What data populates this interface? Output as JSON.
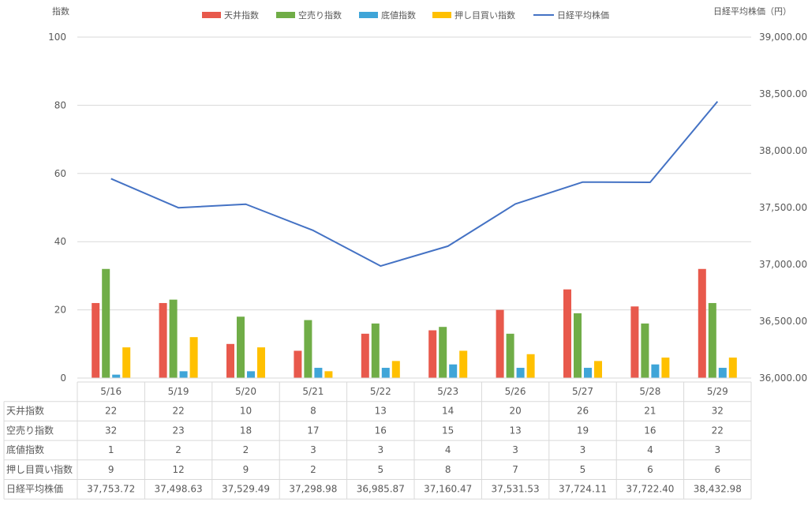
{
  "chart_data": {
    "type": "bar",
    "categories": [
      "5/16",
      "5/19",
      "5/20",
      "5/21",
      "5/22",
      "5/23",
      "5/26",
      "5/27",
      "5/28",
      "5/29"
    ],
    "series": [
      {
        "name": "天井指数",
        "kind": "bar",
        "color": "#E8594C",
        "values": [
          22,
          22,
          10,
          8,
          13,
          14,
          20,
          26,
          21,
          32
        ]
      },
      {
        "name": "空売り指数",
        "kind": "bar",
        "color": "#70AD47",
        "values": [
          32,
          23,
          18,
          17,
          16,
          15,
          13,
          19,
          16,
          22
        ]
      },
      {
        "name": "底値指数",
        "kind": "bar",
        "color": "#3FA5D8",
        "values": [
          1,
          2,
          2,
          3,
          3,
          4,
          3,
          3,
          4,
          3
        ]
      },
      {
        "name": "押し目買い指数",
        "kind": "bar",
        "color": "#FFC000",
        "values": [
          9,
          12,
          9,
          2,
          5,
          8,
          7,
          5,
          6,
          6
        ]
      },
      {
        "name": "日経平均株価",
        "kind": "line",
        "axis": "right",
        "color": "#4472C4",
        "values": [
          37753.72,
          37498.63,
          37529.49,
          37298.98,
          36985.87,
          37160.47,
          37531.53,
          37724.11,
          37722.4,
          38432.98
        ]
      }
    ],
    "ylabel": "指数",
    "ylabel_right": "日経平均株価（円）",
    "ylim": [
      0,
      100
    ],
    "yticks": [
      "0",
      "20",
      "40",
      "60",
      "80",
      "100"
    ],
    "ylim_right": [
      36000,
      39000
    ],
    "yticks_right": [
      "36,000.00",
      "36,500.00",
      "37,000.00",
      "37,500.00",
      "38,000.00",
      "38,500.00",
      "39,000.00"
    ],
    "grid": true,
    "legend": "top",
    "data_table": {
      "rows": [
        {
          "label": "天井指数",
          "cells": [
            "22",
            "22",
            "10",
            "8",
            "13",
            "14",
            "20",
            "26",
            "21",
            "32"
          ]
        },
        {
          "label": "空売り指数",
          "cells": [
            "32",
            "23",
            "18",
            "17",
            "16",
            "15",
            "13",
            "19",
            "16",
            "22"
          ]
        },
        {
          "label": "底値指数",
          "cells": [
            "1",
            "2",
            "2",
            "3",
            "3",
            "4",
            "3",
            "3",
            "4",
            "3"
          ]
        },
        {
          "label": "押し目買い指数",
          "cells": [
            "9",
            "12",
            "9",
            "2",
            "5",
            "8",
            "7",
            "5",
            "6",
            "6"
          ]
        },
        {
          "label": "日経平均株価",
          "cells": [
            "37,753.72",
            "37,498.63",
            "37,529.49",
            "37,298.98",
            "36,985.87",
            "37,160.47",
            "37,531.53",
            "37,724.11",
            "37,722.40",
            "38,432.98"
          ]
        }
      ]
    }
  }
}
